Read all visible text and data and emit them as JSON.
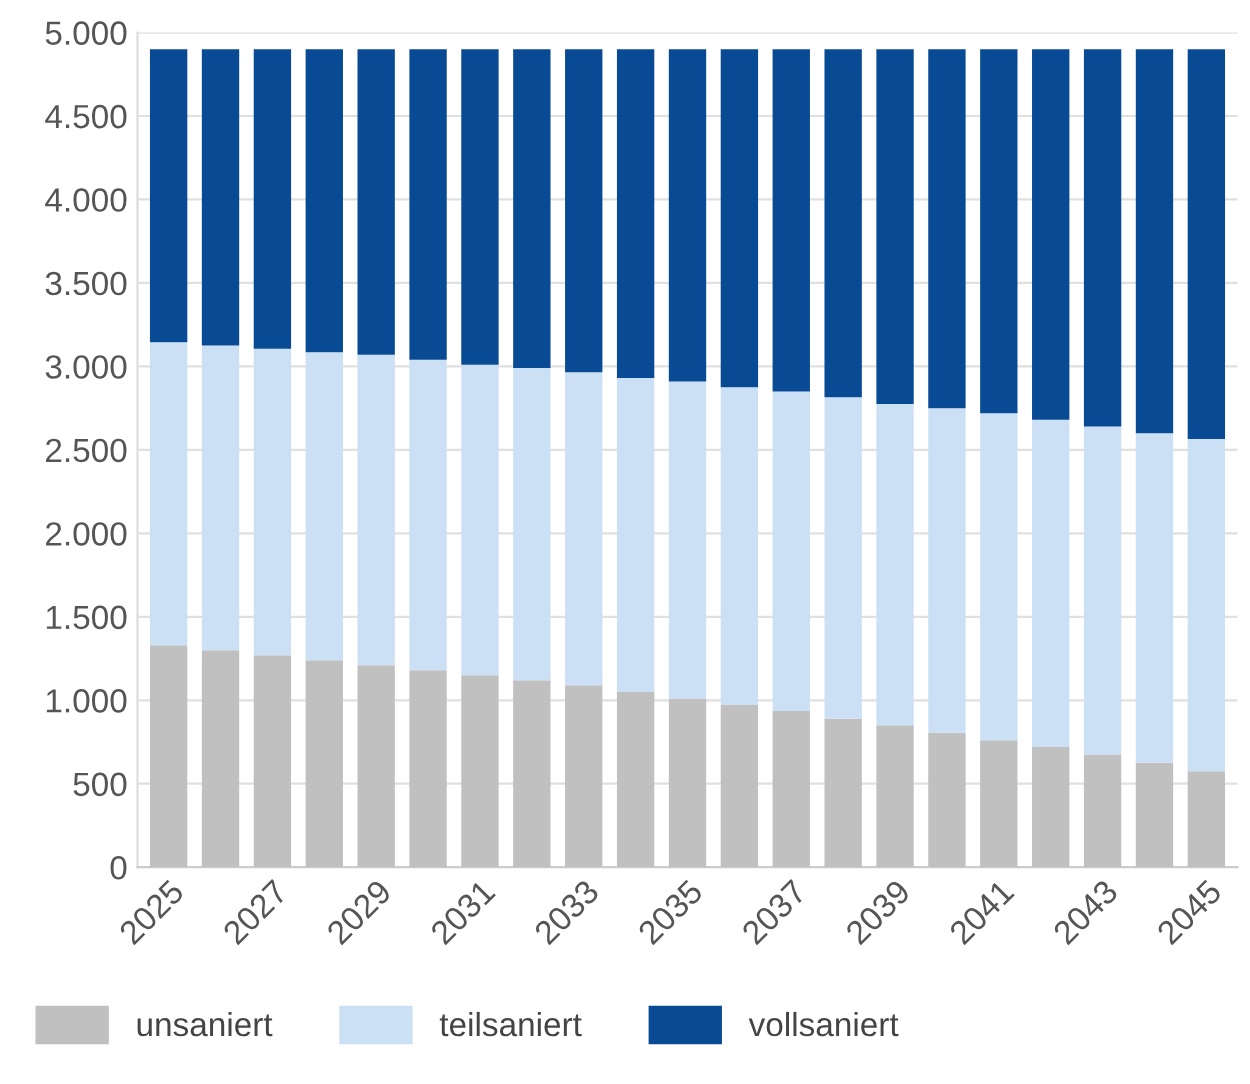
{
  "chart_data": {
    "type": "bar",
    "stacked": true,
    "categories": [
      "2025",
      null,
      "2027",
      null,
      "2029",
      null,
      "2031",
      null,
      "2033",
      null,
      "2035",
      null,
      "2037",
      null,
      "2039",
      null,
      "2041",
      null,
      "2043",
      null,
      "2045"
    ],
    "series": [
      {
        "name": "unsaniert",
        "color": "#c0c0c0",
        "values": [
          1330,
          1300,
          1270,
          1240,
          1210,
          1180,
          1150,
          1120,
          1090,
          1050,
          1010,
          975,
          935,
          890,
          850,
          805,
          760,
          720,
          675,
          625,
          575
        ]
      },
      {
        "name": "teilsaniert",
        "color": "#cce0f5",
        "values": [
          1815,
          1825,
          1835,
          1845,
          1860,
          1860,
          1860,
          1870,
          1875,
          1880,
          1900,
          1900,
          1915,
          1925,
          1925,
          1945,
          1960,
          1960,
          1965,
          1975,
          1990
        ]
      },
      {
        "name": "vollsaniert",
        "color": "#084b94",
        "values": [
          1755,
          1775,
          1795,
          1815,
          1830,
          1860,
          1890,
          1910,
          1935,
          1970,
          1990,
          2025,
          2050,
          2085,
          2125,
          2150,
          2180,
          2220,
          2260,
          2300,
          2335
        ]
      }
    ],
    "ylim": [
      0,
      5000
    ],
    "yticks": [
      0,
      500,
      {
        "value": 1000,
        "label": "1.000"
      },
      {
        "value": 1500,
        "label": "1.500"
      },
      {
        "value": 2000,
        "label": "2.000"
      },
      {
        "value": 2500,
        "label": "2.500"
      },
      {
        "value": 3000,
        "label": "3.000"
      },
      {
        "value": 3500,
        "label": "3.500"
      },
      {
        "value": 4000,
        "label": "4.000"
      },
      {
        "value": 4500,
        "label": "4.500"
      },
      {
        "value": 5000,
        "label": "5.000"
      }
    ],
    "grid": "y",
    "legend": "bottom"
  }
}
